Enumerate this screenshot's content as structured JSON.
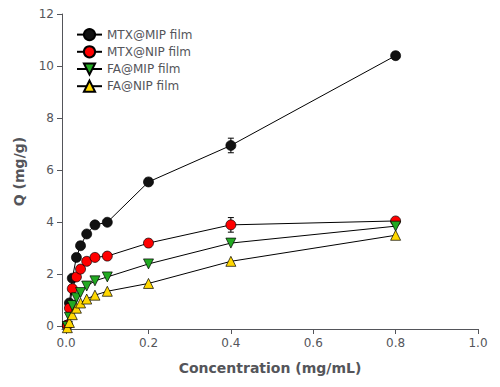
{
  "chart_data": {
    "type": "line",
    "xlabel": "Concentration (mg/mL)",
    "ylabel": "Q (mg/g)",
    "xlim": [
      -0.01,
      1.0
    ],
    "ylim": [
      -0.1,
      12
    ],
    "xticks": [
      {
        "value": 0,
        "label": "0.0"
      },
      0.2,
      0.4,
      0.6,
      0.8,
      {
        "value": 1,
        "label": "1.0"
      }
    ],
    "yticks": [
      0,
      2,
      4,
      6,
      8,
      10,
      12
    ],
    "grid": false,
    "legend": "upper left",
    "x": [
      0.003,
      0.008,
      0.015,
      0.025,
      0.035,
      0.05,
      0.07,
      0.1,
      0.2,
      0.4,
      0.8
    ],
    "series": [
      {
        "name": "MTX@MIP film",
        "color": "#111111",
        "marker": "circle",
        "values": [
          0.05,
          0.9,
          1.85,
          2.65,
          3.1,
          3.55,
          3.9,
          4.0,
          5.55,
          6.95,
          10.4
        ],
        "yerr": [
          0.0,
          0.0,
          0.0,
          0.0,
          0.0,
          0.0,
          0.0,
          0.0,
          0.0,
          0.28,
          0.0
        ]
      },
      {
        "name": "MTX@NIP film",
        "color": "#ff0000",
        "marker": "circle",
        "values": [
          0.05,
          0.7,
          1.45,
          1.9,
          2.2,
          2.5,
          2.65,
          2.7,
          3.2,
          3.9,
          4.05
        ],
        "yerr": [
          0.0,
          0.0,
          0.0,
          0.0,
          0.0,
          0.0,
          0.0,
          0.0,
          0.0,
          0.28,
          0.0
        ]
      },
      {
        "name": "FA@MIP film",
        "color": "#22aa22",
        "marker": "triangle-down",
        "values": [
          0.0,
          0.35,
          0.8,
          1.1,
          1.3,
          1.55,
          1.75,
          1.9,
          2.4,
          3.2,
          3.85
        ],
        "yerr": [
          0.0,
          0.0,
          0.0,
          0.0,
          0.0,
          0.0,
          0.0,
          0.0,
          0.0,
          0.0,
          0.0
        ]
      },
      {
        "name": "FA@NIP film",
        "color": "#FFD700",
        "marker": "triangle-up",
        "values": [
          -0.05,
          0.15,
          0.45,
          0.7,
          0.9,
          1.05,
          1.2,
          1.35,
          1.65,
          2.5,
          3.5
        ],
        "yerr": [
          0.0,
          0.0,
          0.0,
          0.0,
          0.0,
          0.0,
          0.0,
          0.0,
          0.0,
          0.0,
          0.0
        ]
      }
    ]
  }
}
